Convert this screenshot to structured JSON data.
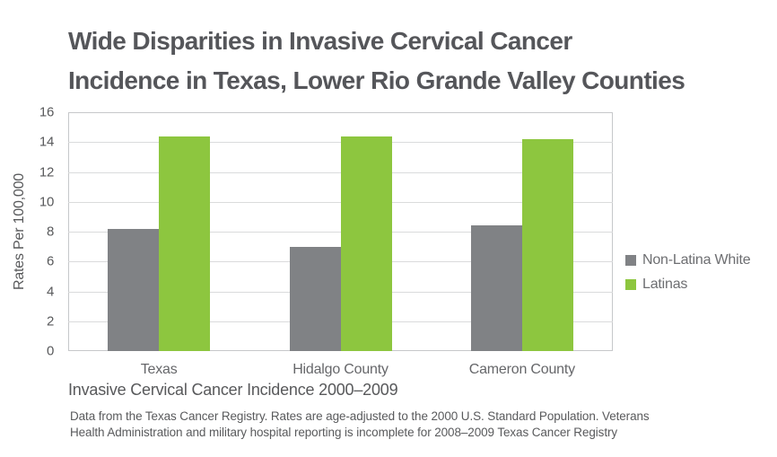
{
  "title": {
    "line1": "Wide Disparities in Invasive Cervical Cancer",
    "line2": "Incidence in Texas, Lower Rio Grande Valley Counties"
  },
  "chart_data": {
    "type": "bar",
    "categories": [
      "Texas",
      "Hidalgo County",
      "Cameron County"
    ],
    "series": [
      {
        "name": "Non-Latina White",
        "color": "#808285",
        "values": [
          8.2,
          7.0,
          8.4
        ]
      },
      {
        "name": "Latinas",
        "color": "#8DC63F",
        "values": [
          14.4,
          14.4,
          14.2
        ]
      }
    ],
    "title": "Wide Disparities in Invasive Cervical Cancer Incidence in Texas, Lower Rio Grande Valley Counties",
    "xlabel": "",
    "ylabel": "Rates Per 100,000",
    "ylim": [
      0,
      16
    ],
    "ytick_step": 2,
    "grid": true,
    "legend_position": "right"
  },
  "caption": "Invasive Cervical Cancer Incidence 2000–2009",
  "footnote": {
    "line1": "Data from the Texas Cancer Registry. Rates are age-adjusted to the 2000 U.S. Standard Population. Veterans",
    "line2": "Health Administration and military hospital reporting is incomplete for 2008–2009 Texas Cancer Registry"
  },
  "colors": {
    "series_gray": "#808285",
    "series_green": "#8DC63F",
    "title_text": "#55565A",
    "axis_text": "#58595B",
    "gridline": "#DADBDC",
    "plot_border": "#C6C8CA"
  }
}
